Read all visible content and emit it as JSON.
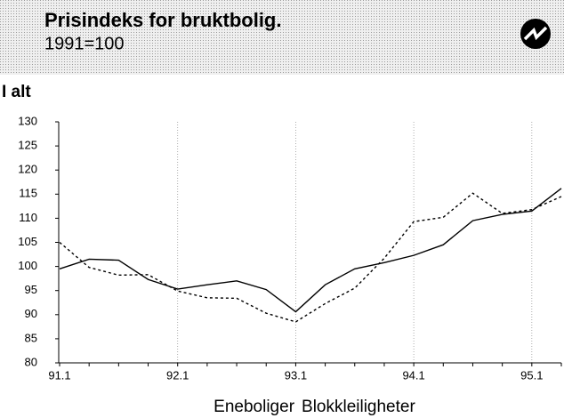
{
  "chart_data": {
    "type": "line",
    "title": "Prisindeks for bruktbolig.",
    "subtitle": "1991=100",
    "panel_title": "I alt",
    "categories": [
      "91.1",
      null,
      null,
      null,
      "92.1",
      null,
      null,
      null,
      "93.1",
      null,
      null,
      null,
      "94.1",
      null,
      null,
      null,
      "95.1",
      null
    ],
    "series": [
      {
        "name": "Eneboliger",
        "color": "#000000",
        "dash": "solid",
        "values": [
          99.5,
          101.5,
          101.3,
          97.3,
          95.3,
          96.2,
          97,
          95.2,
          90.6,
          96.2,
          99.5,
          100.8,
          102.3,
          104.5,
          109.5,
          110.8,
          111.5,
          116.2
        ]
      },
      {
        "name": "Blokkleiligheter",
        "color": "#000000",
        "dash": "dotted",
        "values": [
          105,
          99.8,
          98.2,
          98.3,
          94.9,
          93.5,
          93.4,
          90.3,
          88.5,
          92.3,
          95.5,
          101.7,
          109.3,
          110.2,
          115.2,
          111,
          111.8,
          114.5
        ]
      }
    ],
    "ylim": [
      80,
      130
    ],
    "yticks": [
      80,
      85,
      90,
      95,
      100,
      105,
      110,
      115,
      120,
      125,
      130
    ],
    "grid": true
  }
}
